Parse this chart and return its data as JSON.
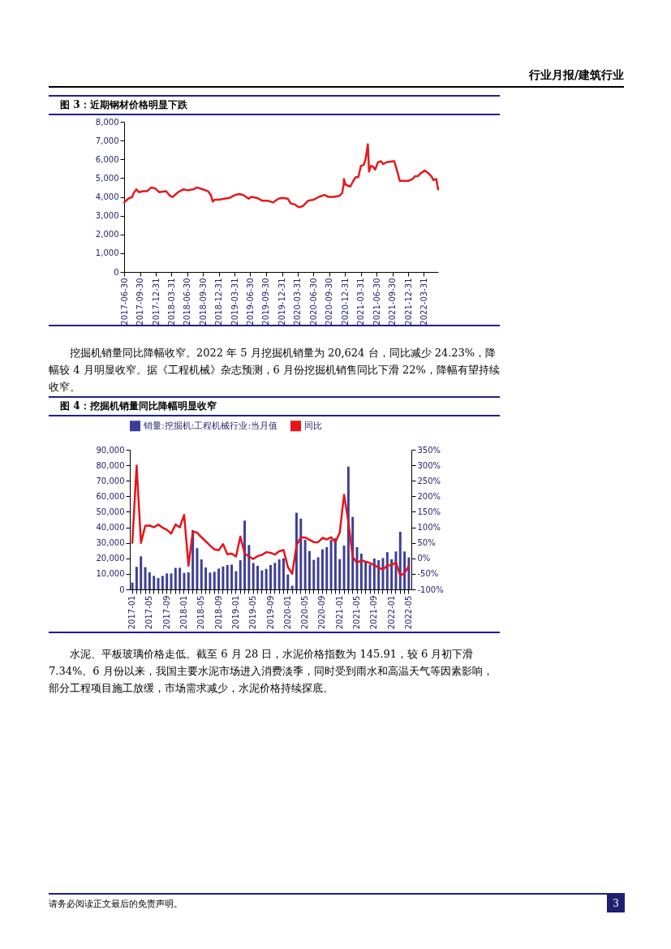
{
  "chart_data": [
    {
      "type": "line",
      "title": "图 3：近期钢材价格明显下跌",
      "annotations": [
        "行业月报/建筑行业",
        "挖掘机销量同比降幅收窄。2022 年 5 月挖掘机销量为 20,624 台，同比减少 24.23%，降幅较 4 月明显收窄。据《工程机械》杂志预测，6 月份挖掘机销售同比下滑 22%，降幅有望持续收窄。"
      ],
      "xlim": [
        "2017-06-30",
        "2022-06-22"
      ],
      "xticks": [
        "2017-06-30",
        "2017-09-30",
        "2017-12-31",
        "2018-03-31",
        "2018-06-30",
        "2018-09-30",
        "2018-12-31",
        "2019-03-31",
        "2019-06-30",
        "2019-09-30",
        "2019-12-31",
        "2020-03-31",
        "2020-06-30",
        "2020-09-30",
        "2020-12-31",
        "2021-03-31",
        "2021-06-30",
        "2021-09-30",
        "2021-12-31",
        "2022-03-31"
      ],
      "ylim": [
        0,
        8000
      ],
      "yticks": [
        0,
        {
          "value": 1000,
          "label": "1,000"
        },
        {
          "value": 2000,
          "label": "2,000"
        },
        {
          "value": 3000,
          "label": "3,000"
        },
        {
          "value": 4000,
          "label": "4,000"
        },
        {
          "value": 5000,
          "label": "5,000"
        },
        {
          "value": 6000,
          "label": "6,000"
        },
        {
          "value": 7000,
          "label": "7,000"
        },
        {
          "value": 8000,
          "label": "8,000"
        }
      ],
      "series": [
        {
          "color": "#e41a1c",
          "x": [
            "2017-06-30",
            "2017-07-23",
            "2017-08-16",
            "2017-08-24",
            "2017-09-09",
            "2017-09-24",
            "2017-10-18",
            "2017-11-10",
            "2017-12-04",
            "2017-12-27",
            "2018-01-20",
            "2018-02-28",
            "2018-03-23",
            "2018-04-08",
            "2018-05-02",
            "2018-05-17",
            "2018-06-10",
            "2018-07-03",
            "2018-08-04",
            "2018-08-27",
            "2018-09-28",
            "2018-10-29",
            "2018-11-14",
            "2018-11-25",
            "2018-12-07",
            "2018-12-31",
            "2019-01-31",
            "2019-03-03",
            "2019-04-04",
            "2019-04-27",
            "2019-05-21",
            "2019-06-21",
            "2019-07-07",
            "2019-08-07",
            "2019-09-07",
            "2019-10-09",
            "2019-11-09",
            "2019-12-10",
            "2020-01-03",
            "2020-02-03",
            "2020-02-19",
            "2020-03-13",
            "2020-04-06",
            "2020-04-29",
            "2020-05-31",
            "2020-07-01",
            "2020-08-01",
            "2020-09-02",
            "2020-09-25",
            "2020-10-27",
            "2020-11-27",
            "2020-12-13",
            "2020-12-21",
            "2020-12-24",
            "2021-01-02",
            "2021-01-29",
            "2021-02-13",
            "2021-03-01",
            "2021-03-17",
            "2021-04-01",
            "2021-04-17",
            "2021-04-28",
            "2021-05-11",
            "2021-05-18",
            "2021-05-29",
            "2021-06-11",
            "2021-06-22",
            "2021-07-09",
            "2021-07-25",
            "2021-08-09",
            "2021-08-28",
            "2021-10-11",
            "2021-10-30",
            "2021-11-12",
            "2021-12-08",
            "2022-01-01",
            "2022-01-24",
            "2022-02-09",
            "2022-02-24",
            "2022-03-12",
            "2022-04-05",
            "2022-04-28",
            "2022-05-14",
            "2022-05-25",
            "2022-06-11",
            "2022-06-22"
          ],
          "values": [
            3700,
            3900,
            4000,
            4200,
            4400,
            4250,
            4300,
            4300,
            4500,
            4450,
            4250,
            4300,
            4050,
            4000,
            4200,
            4300,
            4400,
            4350,
            4400,
            4500,
            4400,
            4300,
            4100,
            3750,
            3850,
            3850,
            3900,
            3950,
            4100,
            4150,
            4100,
            3900,
            4000,
            3950,
            3800,
            3800,
            3700,
            3900,
            3950,
            3900,
            3650,
            3600,
            3450,
            3500,
            3800,
            3850,
            4000,
            4100,
            4000,
            4000,
            4050,
            4200,
            4600,
            4950,
            4650,
            4550,
            4800,
            5050,
            5050,
            5650,
            5700,
            6000,
            6800,
            5350,
            5650,
            5600,
            5450,
            5850,
            5900,
            5750,
            5850,
            5900,
            5300,
            4850,
            4850,
            4850,
            4950,
            5100,
            5100,
            5250,
            5400,
            5250,
            5100,
            4900,
            4950,
            4400
          ]
        }
      ]
    },
    {
      "type": "bar",
      "title": "图 4：挖掘机销量同比降幅明显收窄",
      "annotations": [
        "水泥、平板玻璃价格走低。截至 6 月 28 日，水泥价格指数为 145.91，较 6 月初下滑 7.34%。6 月份以来，我国主要水泥市场进入消费淡季，同时受到雨水和高温天气等因素影响，部分工程项目施工放缓，市场需求减少，水泥价格持续探底。",
        "请务必阅读正文最后的免责声明。",
        "3"
      ],
      "categories": [
        "2017-01",
        null,
        null,
        null,
        "2017-05",
        null,
        null,
        null,
        "2017-09",
        null,
        null,
        null,
        "2018-01",
        null,
        null,
        null,
        "2018-05",
        null,
        null,
        null,
        "2018-09",
        null,
        null,
        null,
        "2019-01",
        null,
        null,
        null,
        "2019-05",
        null,
        null,
        null,
        "2019-09",
        null,
        null,
        null,
        "2020-01",
        null,
        null,
        null,
        "2020-05",
        null,
        null,
        null,
        "2020-09",
        null,
        null,
        null,
        "2021-01",
        null,
        null,
        null,
        "2021-05",
        null,
        null,
        null,
        "2021-09",
        null,
        null,
        null,
        "2022-01",
        null,
        null,
        null,
        "2022-05"
      ],
      "ylim": [
        0,
        90000
      ],
      "yticks": [
        0,
        {
          "value": 10000,
          "label": "10,000"
        },
        {
          "value": 20000,
          "label": "20,000"
        },
        {
          "value": 30000,
          "label": "30,000"
        },
        {
          "value": 40000,
          "label": "40,000"
        },
        {
          "value": 50000,
          "label": "50,000"
        },
        {
          "value": 60000,
          "label": "60,000"
        },
        {
          "value": 70000,
          "label": "70,000"
        },
        {
          "value": 80000,
          "label": "80,000"
        },
        {
          "value": 90000,
          "label": "90,000"
        }
      ],
      "y2lim": [
        -100,
        350
      ],
      "y2ticks": [
        {
          "value": -100,
          "label": "-100%"
        },
        {
          "value": -50,
          "label": "-50%"
        },
        {
          "value": 0,
          "label": "0%"
        },
        {
          "value": 50,
          "label": "50%"
        },
        {
          "value": 100,
          "label": "100%"
        },
        {
          "value": 150,
          "label": "150%"
        },
        {
          "value": 200,
          "label": "200%"
        },
        {
          "value": 250,
          "label": "250%"
        },
        {
          "value": 300,
          "label": "300%"
        },
        {
          "value": 350,
          "label": "350%"
        }
      ],
      "legend": "top",
      "series": [
        {
          "name": "销量:挖掘机:工程机械行业:当月值",
          "color": "#3d3d99",
          "values": [
            4400,
            14500,
            21300,
            14300,
            11000,
            8700,
            7300,
            8700,
            10300,
            10300,
            13800,
            13900,
            10600,
            11000,
            38200,
            26500,
            19300,
            14100,
            10800,
            11300,
            13400,
            14800,
            15700,
            16000,
            11700,
            18800,
            44300,
            28600,
            17000,
            15200,
            12200,
            13200,
            15700,
            17100,
            19300,
            20000,
            9600,
            2300,
            49400,
            45600,
            31900,
            24700,
            19000,
            20700,
            25800,
            27200,
            32000,
            33000,
            19500,
            28200,
            79100,
            46700,
            27200,
            23000,
            17600,
            16000,
            19900,
            18800,
            20200,
            24000,
            19400,
            24400,
            37100,
            24400,
            20600
          ]
        },
        {
          "name": "同比",
          "type": "line",
          "axis": "y2",
          "color": "#e8141c",
          "values": [
            50,
            299,
            50,
            105,
            106,
            100,
            109,
            99,
            92,
            80,
            109,
            100,
            140,
            -24,
            86,
            83,
            68,
            55,
            41,
            29,
            26,
            46,
            13,
            15,
            6,
            70,
            15,
            6,
            -2,
            7,
            11,
            20,
            18,
            12,
            23,
            27,
            -28,
            -50,
            42,
            68,
            67,
            60,
            52,
            52,
            66,
            61,
            68,
            52,
            83,
            205,
            118,
            5,
            -15,
            -6,
            -11,
            -15,
            -22,
            -30,
            -36,
            -23,
            -22,
            -13,
            -55,
            -48,
            -24
          ]
        }
      ]
    }
  ]
}
